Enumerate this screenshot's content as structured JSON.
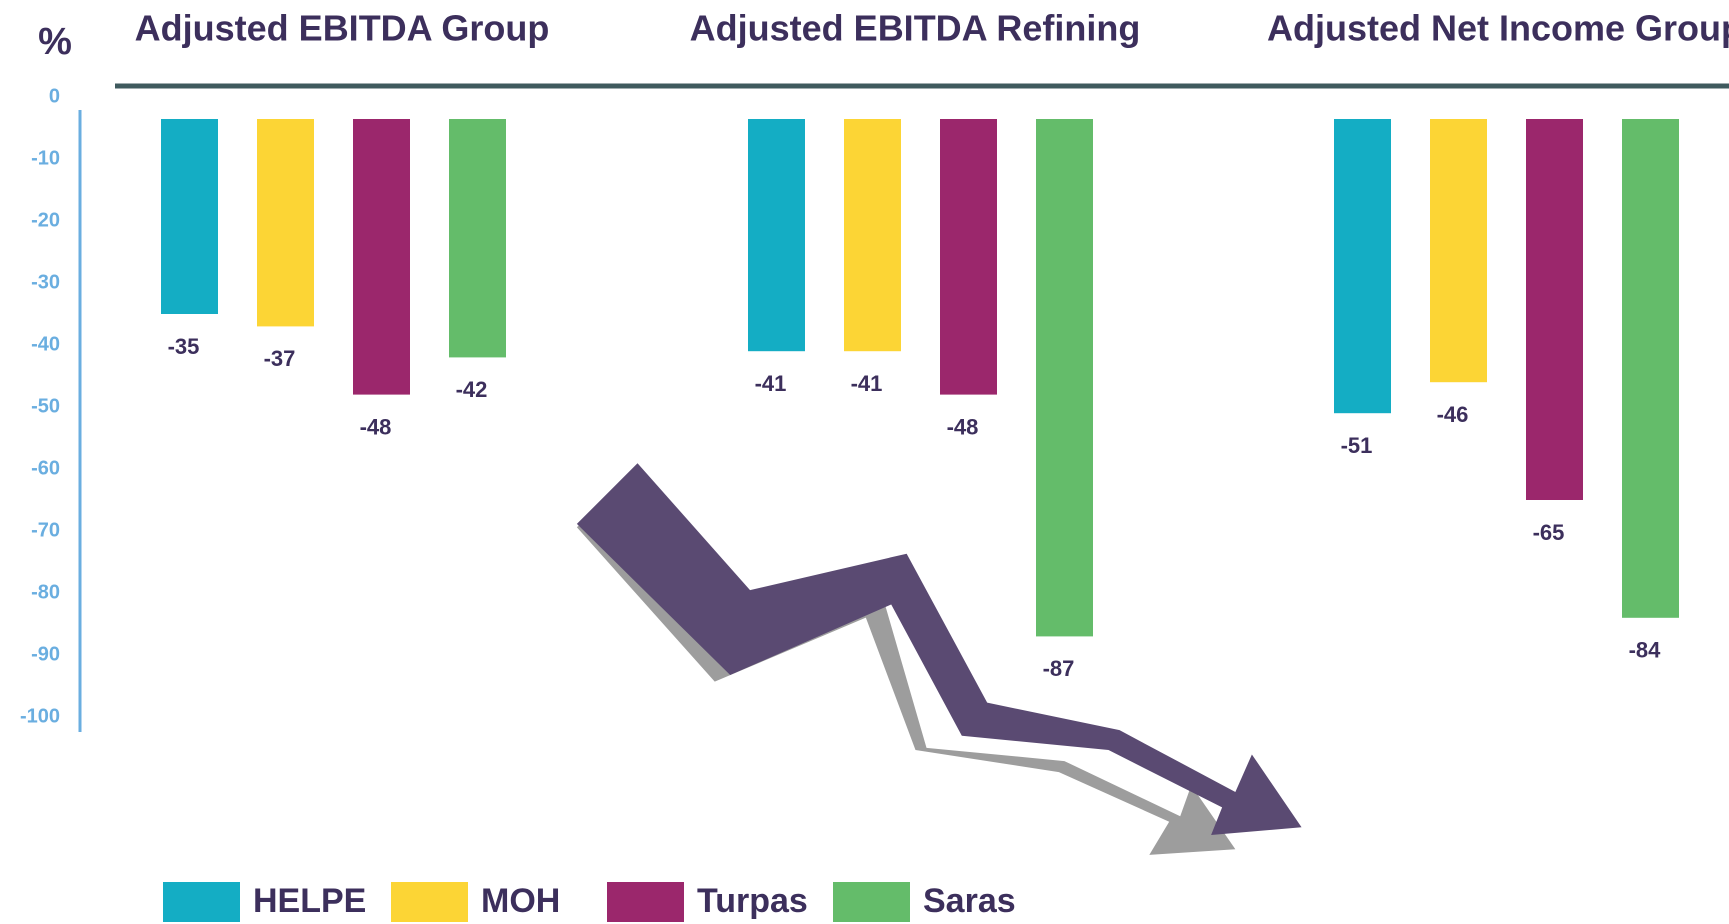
{
  "chart_data": {
    "type": "bar",
    "ylabel": "%",
    "categories": [
      "Adjusted EBITDA Group",
      "Adjusted EBITDA Refining",
      "Adjusted Net Income Group"
    ],
    "series": [
      {
        "name": "HELPE",
        "color": "#14adc4",
        "values": [
          -35,
          -41,
          -51
        ]
      },
      {
        "name": "MOH",
        "color": "#fcd535",
        "values": [
          -37,
          -41,
          -46
        ]
      },
      {
        "name": "Turpas",
        "color": "#9b276c",
        "values": [
          -48,
          -48,
          -65
        ]
      },
      {
        "name": "Saras",
        "color": "#64bc6a",
        "values": [
          -42,
          -87,
          -84
        ]
      }
    ],
    "ylim": [
      -100,
      0
    ],
    "yticks": [
      0,
      -10,
      -20,
      -30,
      -40,
      -50,
      -60,
      -70,
      -80,
      -90,
      -100
    ]
  }
}
